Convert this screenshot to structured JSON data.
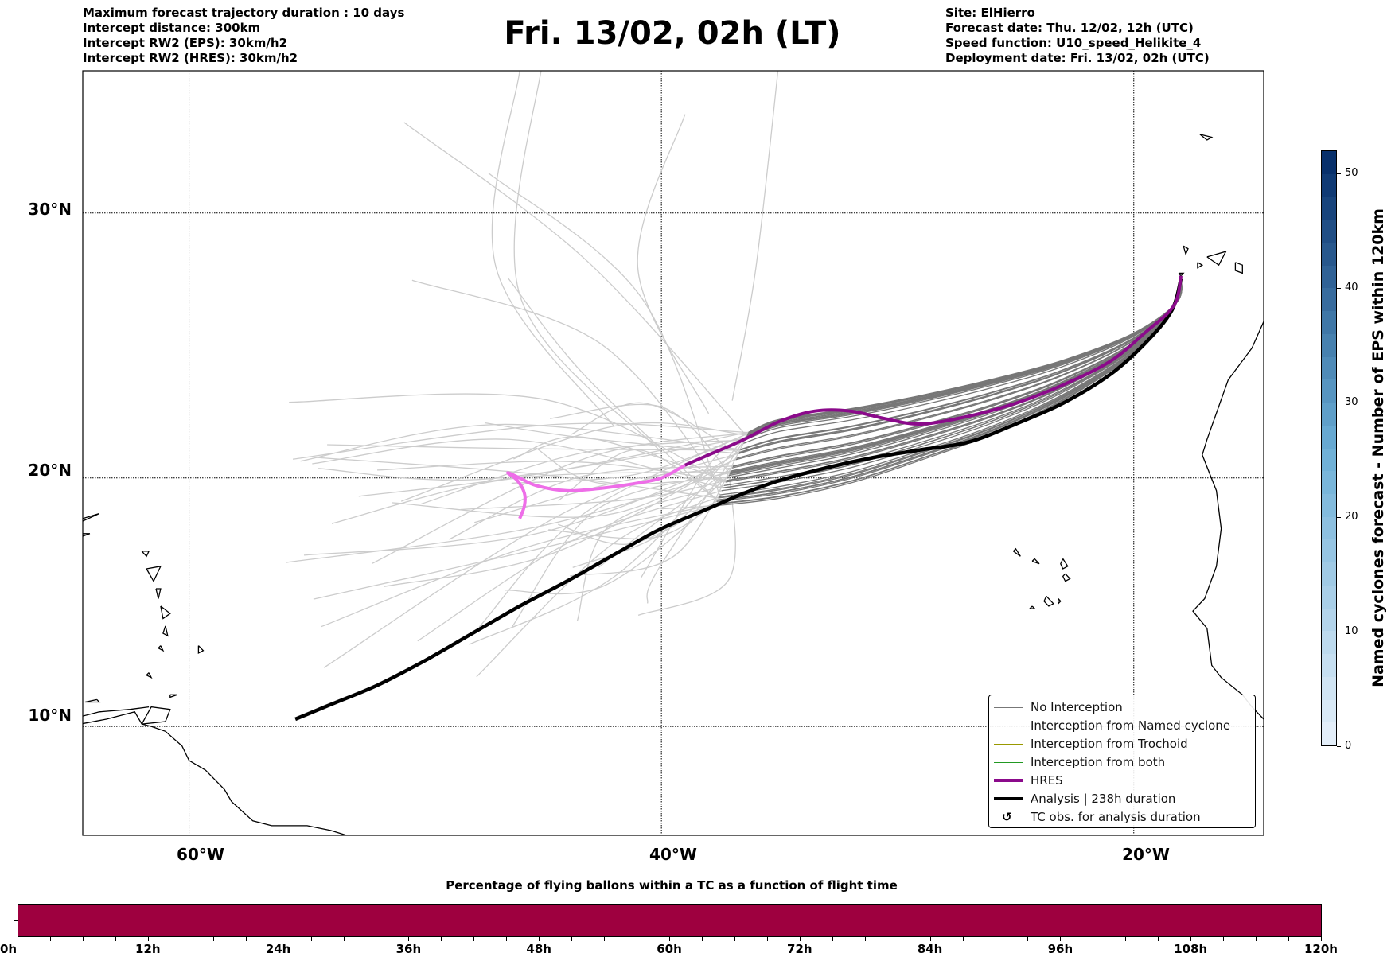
{
  "header": {
    "info_left": [
      "Maximum forecast trajectory duration : 10 days",
      "Intercept distance: 300km",
      "Intercept RW2 (EPS):  30km/h2",
      "Intercept RW2 (HRES): 30km/h2"
    ],
    "title": "Fri. 13/02, 02h (LT)",
    "info_right": [
      "Site: ElHierro",
      "Forecast date: Thu. 12/02, 12h (UTC)",
      "Speed function: U10_speed_Helikite_4",
      "Deployment date: Fri. 13/02, 02h (UTC)"
    ]
  },
  "map": {
    "extent": {
      "lon": [
        -64.5,
        -14.5
      ],
      "lat": [
        5.5,
        35.0
      ]
    },
    "lat_ticks": [
      {
        "value": 30,
        "label": "30°N"
      },
      {
        "value": 20,
        "label": "20°N"
      },
      {
        "value": 10,
        "label": "10°N"
      }
    ],
    "lon_ticks": [
      {
        "value": -60,
        "label": "60°W"
      },
      {
        "value": -40,
        "label": "40°W"
      },
      {
        "value": -20,
        "label": "20°W"
      }
    ],
    "site": {
      "name": "ElHierro",
      "lon": -18.0,
      "lat": 27.7
    },
    "colors": {
      "no_interception": "#777777",
      "no_interception_late": "#cccccc",
      "named_cyclone": "#ff5522",
      "trochoid": "#999900",
      "both": "#229922",
      "hres": "#8b0a8b",
      "hres_late": "#ee6ee8",
      "analysis": "#000000",
      "coast": "#000000"
    },
    "hres_track": [
      [
        -18.0,
        27.7
      ],
      [
        -18.3,
        26.6
      ],
      [
        -19.5,
        25.6
      ],
      [
        -21,
        24.5
      ],
      [
        -23,
        23.6
      ],
      [
        -25,
        22.9
      ],
      [
        -27,
        22.4
      ],
      [
        -29,
        22.1
      ],
      [
        -30.5,
        22.3
      ],
      [
        -32,
        22.6
      ],
      [
        -33.5,
        22.6
      ],
      [
        -35,
        22.2
      ],
      [
        -36.5,
        21.5
      ],
      [
        -38,
        20.9
      ],
      [
        -39,
        20.5
      ]
    ],
    "hres_late_track": [
      [
        -39,
        20.5
      ],
      [
        -40,
        20.0
      ],
      [
        -41,
        19.8
      ],
      [
        -42.5,
        19.6
      ],
      [
        -44,
        19.5
      ],
      [
        -45.3,
        19.7
      ],
      [
        -46,
        20.0
      ],
      [
        -46.5,
        20.2
      ],
      [
        -46.1,
        19.9
      ],
      [
        -45.8,
        19.4
      ],
      [
        -45.8,
        18.9
      ],
      [
        -46,
        18.4
      ]
    ],
    "analysis_track": [
      [
        -18.0,
        27.6
      ],
      [
        -18.4,
        26.4
      ],
      [
        -19.5,
        25.2
      ],
      [
        -21,
        24.0
      ],
      [
        -23,
        22.9
      ],
      [
        -25,
        22.1
      ],
      [
        -27,
        21.4
      ],
      [
        -29,
        21.1
      ],
      [
        -31,
        20.8
      ],
      [
        -33,
        20.4
      ],
      [
        -35,
        19.9
      ],
      [
        -36.5,
        19.4
      ],
      [
        -38,
        18.8
      ],
      [
        -40,
        18.0
      ],
      [
        -41,
        17.5
      ],
      [
        -42.5,
        16.7
      ],
      [
        -44,
        15.9
      ],
      [
        -46,
        14.9
      ],
      [
        -48,
        13.8
      ],
      [
        -50,
        12.7
      ],
      [
        -52,
        11.7
      ],
      [
        -54,
        10.9
      ],
      [
        -55.5,
        10.3
      ]
    ]
  },
  "legend": {
    "items": [
      {
        "label": "No Interception",
        "style": "thin",
        "color": "#777777"
      },
      {
        "label": "Interception from Named cyclone",
        "style": "thin",
        "color": "#ff5522"
      },
      {
        "label": "Interception from Trochoid",
        "style": "thin",
        "color": "#999900"
      },
      {
        "label": "Interception from both",
        "style": "thin",
        "color": "#229922"
      },
      {
        "label": "HRES",
        "style": "thick",
        "color": "#8b0a8b"
      },
      {
        "label": "Analysis | 238h duration",
        "style": "thick",
        "color": "#000000"
      },
      {
        "label": "TC obs. for analysis duration",
        "style": "glyph",
        "glyph": "↺"
      }
    ]
  },
  "colorbar": {
    "title": "Named cyclones forecast - Number of EPS within 120km",
    "range": [
      0,
      52
    ],
    "ticks": [
      0,
      10,
      20,
      30,
      40,
      50
    ],
    "tick_labels": [
      "0",
      "10",
      "20",
      "30",
      "40",
      "50"
    ],
    "color_low": "#e3eef9",
    "color_high": "#08306b"
  },
  "timebar": {
    "title": "Percentage of flying ballons within a TC as a function of flight time",
    "fill_color": "#9e003f",
    "range_hours": [
      0,
      120
    ],
    "filled_fraction": 1.0,
    "major_labels": [
      "0h",
      "12h",
      "24h",
      "36h",
      "48h",
      "60h",
      "72h",
      "84h",
      "96h",
      "108h",
      "120h"
    ],
    "minor_step_hours": 3
  }
}
